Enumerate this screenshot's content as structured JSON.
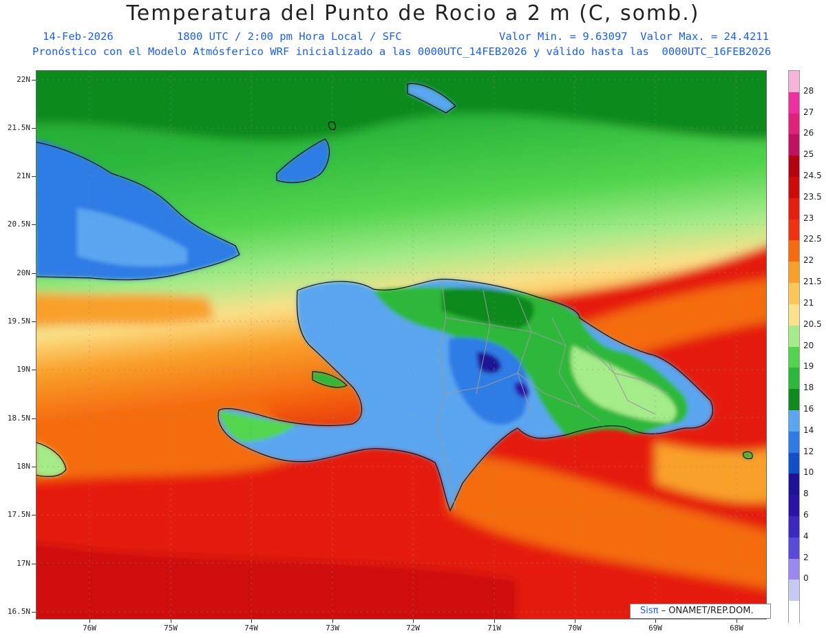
{
  "title": "Temperatura del Punto de Rocio a 2 m (C, somb.)",
  "subtitle_left": "14-Feb-2026",
  "subtitle_mid": "1800 UTC / 2:00 pm Hora Local / SFC",
  "subtitle_right": "Valor Min. = 9.63097  Valor Max. = 24.4211",
  "model_line": "Pronóstico con el Modelo Atmósferico WRF inicializado a las 0000UTC_14FEB2026 y válido hasta las  0000UTC_16FEB2026",
  "lat_labels": [
    "22N",
    "21.5N",
    "21N",
    "20.5N",
    "20N",
    "19.5N",
    "19N",
    "18.5N",
    "18N",
    "17.5N",
    "17N",
    "16.5N"
  ],
  "lon_labels": [
    "76W",
    "75W",
    "74W",
    "73W",
    "72W",
    "71W",
    "70W",
    "69W",
    "68W"
  ],
  "colorbar": {
    "labels": [
      "28",
      "27",
      "26",
      "25",
      "24.5",
      "23.5",
      "23",
      "22.5",
      "22",
      "21.5",
      "21",
      "20.5",
      "20",
      "19",
      "18",
      "16",
      "14",
      "12",
      "10",
      "8",
      "6",
      "4",
      "2",
      "0"
    ],
    "colors": [
      "#f7b3d8",
      "#ee2fa0",
      "#e0207a",
      "#c01064",
      "#b5000f",
      "#cf0a0a",
      "#e51e10",
      "#ee3310",
      "#f56c10",
      "#f9a02a",
      "#fbc65a",
      "#fbe18a",
      "#a4eb8a",
      "#52d54d",
      "#2db83b",
      "#0e8a1f",
      "#5aa6f0",
      "#2f7be6",
      "#1050c8",
      "#1e1296",
      "#2a14a8",
      "#3c28c0",
      "#5a4ad8",
      "#9a88ee",
      "#c8c8f4",
      "#ffffff"
    ]
  },
  "credit": {
    "brand": "Sisπ",
    "text": "– ONAMET/REP.DOM."
  }
}
